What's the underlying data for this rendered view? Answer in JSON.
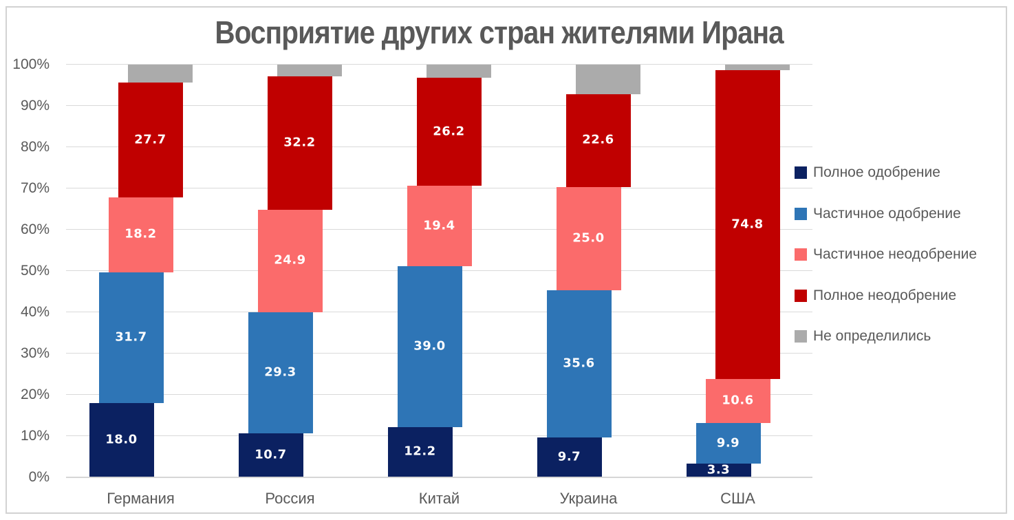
{
  "chart_data": {
    "type": "bar",
    "variant": "stacked-column-100-overlapped",
    "title": "Восприятие других стран жителями Ирана",
    "categories": [
      "Германия",
      "Россия",
      "Китай",
      "Украина",
      "США"
    ],
    "series": [
      {
        "name": "Полное одобрение",
        "color": "#0B2161",
        "show_labels": true,
        "values": [
          18.0,
          10.7,
          12.2,
          9.7,
          3.3
        ]
      },
      {
        "name": "Частичное одобрение",
        "color": "#2E75B6",
        "show_labels": true,
        "values": [
          31.7,
          29.3,
          39.0,
          35.6,
          9.9
        ]
      },
      {
        "name": "Частичное неодобрение",
        "color": "#FB6B6B",
        "show_labels": true,
        "values": [
          18.2,
          24.9,
          19.4,
          25.0,
          10.6
        ]
      },
      {
        "name": "Полное неодобрение",
        "color": "#C00000",
        "show_labels": true,
        "values": [
          27.7,
          32.2,
          26.2,
          22.6,
          74.8
        ]
      },
      {
        "name": "Не определились",
        "color": "#ABABAB",
        "show_labels": false,
        "values": [
          4.4,
          2.9,
          3.2,
          7.1,
          1.4
        ]
      }
    ],
    "y_axis": {
      "min": 0,
      "max": 100,
      "ticks": [
        "0%",
        "10%",
        "20%",
        "30%",
        "40%",
        "50%",
        "60%",
        "70%",
        "80%",
        "90%",
        "100%"
      ],
      "grid": true
    },
    "legend_position": "right",
    "data_label_color": "#FFFFFF",
    "axis_text_color": "#595959",
    "grid_color": "#D9D9D9"
  }
}
